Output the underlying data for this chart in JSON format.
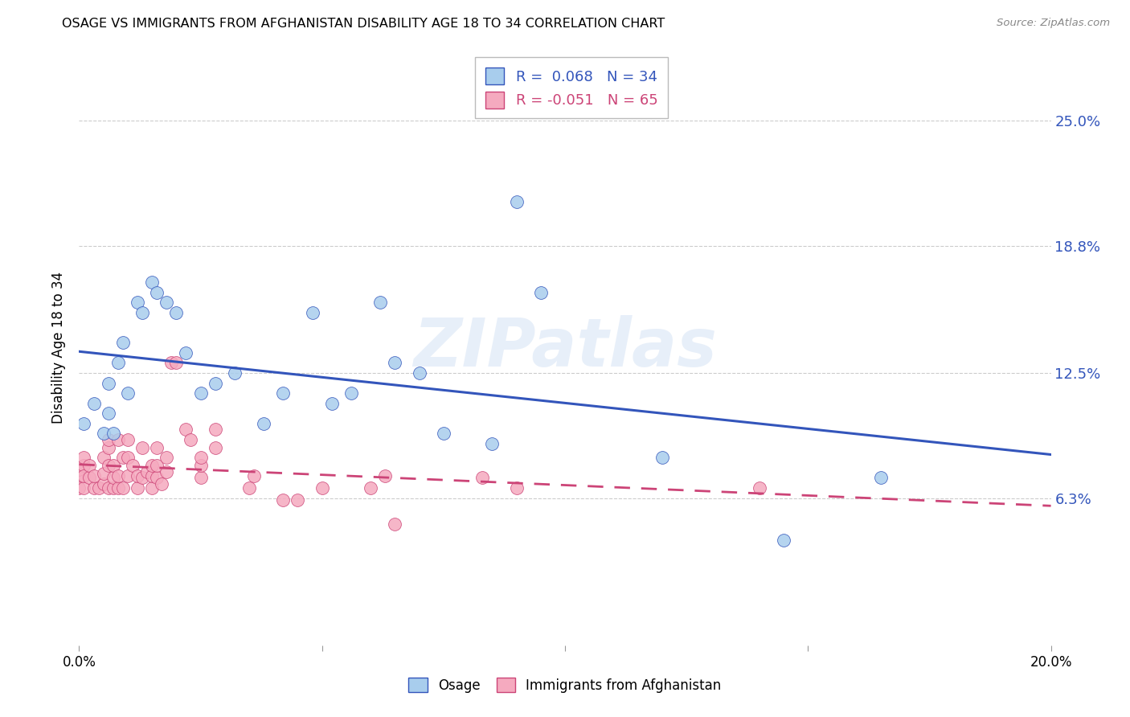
{
  "title": "OSAGE VS IMMIGRANTS FROM AFGHANISTAN DISABILITY AGE 18 TO 34 CORRELATION CHART",
  "source": "Source: ZipAtlas.com",
  "ylabel": "Disability Age 18 to 34",
  "ytick_labels": [
    "6.3%",
    "12.5%",
    "18.8%",
    "25.0%"
  ],
  "ytick_values": [
    0.063,
    0.125,
    0.188,
    0.25
  ],
  "xmin": 0.0,
  "xmax": 0.2,
  "ymin": -0.01,
  "ymax": 0.285,
  "r_osage": 0.068,
  "n_osage": 34,
  "r_afghanistan": -0.051,
  "n_afghanistan": 65,
  "color_osage": "#A8CDED",
  "color_afghanistan": "#F5AABF",
  "color_osage_line": "#3355BB",
  "color_afghanistan_line": "#CC4477",
  "watermark": "ZIPatlas",
  "osage_x": [
    0.001,
    0.003,
    0.005,
    0.006,
    0.006,
    0.007,
    0.008,
    0.009,
    0.01,
    0.012,
    0.013,
    0.015,
    0.016,
    0.018,
    0.02,
    0.022,
    0.025,
    0.028,
    0.032,
    0.038,
    0.042,
    0.048,
    0.052,
    0.056,
    0.062,
    0.065,
    0.07,
    0.075,
    0.085,
    0.09,
    0.095,
    0.12,
    0.145,
    0.165
  ],
  "osage_y": [
    0.1,
    0.11,
    0.095,
    0.105,
    0.12,
    0.095,
    0.13,
    0.14,
    0.115,
    0.16,
    0.155,
    0.17,
    0.165,
    0.16,
    0.155,
    0.135,
    0.115,
    0.12,
    0.125,
    0.1,
    0.115,
    0.155,
    0.11,
    0.115,
    0.16,
    0.13,
    0.125,
    0.095,
    0.09,
    0.21,
    0.165,
    0.083,
    0.042,
    0.073
  ],
  "afghanistan_x": [
    0.0,
    0.0,
    0.0,
    0.001,
    0.001,
    0.001,
    0.001,
    0.002,
    0.002,
    0.003,
    0.003,
    0.004,
    0.005,
    0.005,
    0.005,
    0.006,
    0.006,
    0.006,
    0.006,
    0.007,
    0.007,
    0.007,
    0.008,
    0.008,
    0.008,
    0.009,
    0.009,
    0.01,
    0.01,
    0.01,
    0.011,
    0.012,
    0.012,
    0.013,
    0.013,
    0.014,
    0.015,
    0.015,
    0.015,
    0.016,
    0.016,
    0.016,
    0.017,
    0.018,
    0.018,
    0.019,
    0.02,
    0.022,
    0.023,
    0.025,
    0.025,
    0.025,
    0.028,
    0.028,
    0.035,
    0.036,
    0.042,
    0.045,
    0.05,
    0.06,
    0.063,
    0.065,
    0.083,
    0.09,
    0.14
  ],
  "afghanistan_y": [
    0.073,
    0.068,
    0.077,
    0.079,
    0.068,
    0.074,
    0.083,
    0.073,
    0.079,
    0.068,
    0.074,
    0.068,
    0.07,
    0.075,
    0.083,
    0.068,
    0.079,
    0.088,
    0.092,
    0.068,
    0.073,
    0.079,
    0.068,
    0.074,
    0.092,
    0.068,
    0.083,
    0.074,
    0.083,
    0.092,
    0.079,
    0.068,
    0.074,
    0.073,
    0.088,
    0.076,
    0.068,
    0.074,
    0.079,
    0.073,
    0.079,
    0.088,
    0.07,
    0.076,
    0.083,
    0.13,
    0.13,
    0.097,
    0.092,
    0.073,
    0.079,
    0.083,
    0.088,
    0.097,
    0.068,
    0.074,
    0.062,
    0.062,
    0.068,
    0.068,
    0.074,
    0.05,
    0.073,
    0.068,
    0.068
  ]
}
